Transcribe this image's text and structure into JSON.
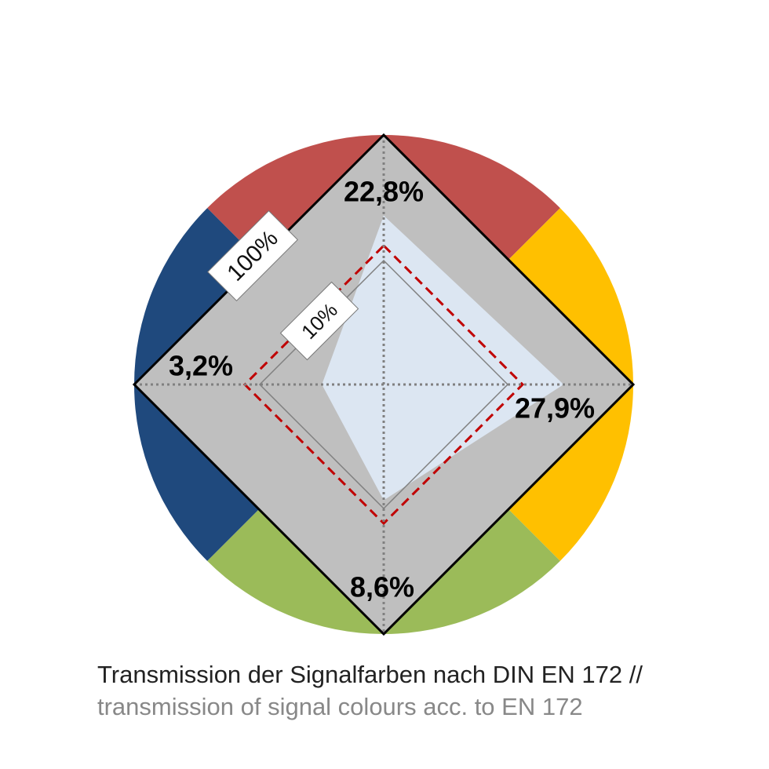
{
  "chart_data": {
    "type": "radar",
    "axes": [
      {
        "color_name": "red",
        "color": "#C0504D",
        "value_percent": 22.8,
        "label": "22,8%"
      },
      {
        "color_name": "yellow",
        "color": "#FFC000",
        "value_percent": 27.9,
        "label": "27,9%"
      },
      {
        "color_name": "green",
        "color": "#9BBB59",
        "value_percent": 8.6,
        "label": "8,6%"
      },
      {
        "color_name": "blue",
        "color": "#1F497D",
        "value_percent": 3.2,
        "label": "3,2%"
      }
    ],
    "scale_labels": [
      "100%",
      "10%"
    ],
    "colors": {
      "outer_diamond": "#BFBFBF",
      "data_area": "#DCE6F2",
      "reference_dashed": "#C00000",
      "grid": "#808080"
    }
  },
  "caption": {
    "line1": "Transmission der Signalfarben nach DIN EN 172 //",
    "line2": "transmission of signal colours acc. to EN 172"
  }
}
